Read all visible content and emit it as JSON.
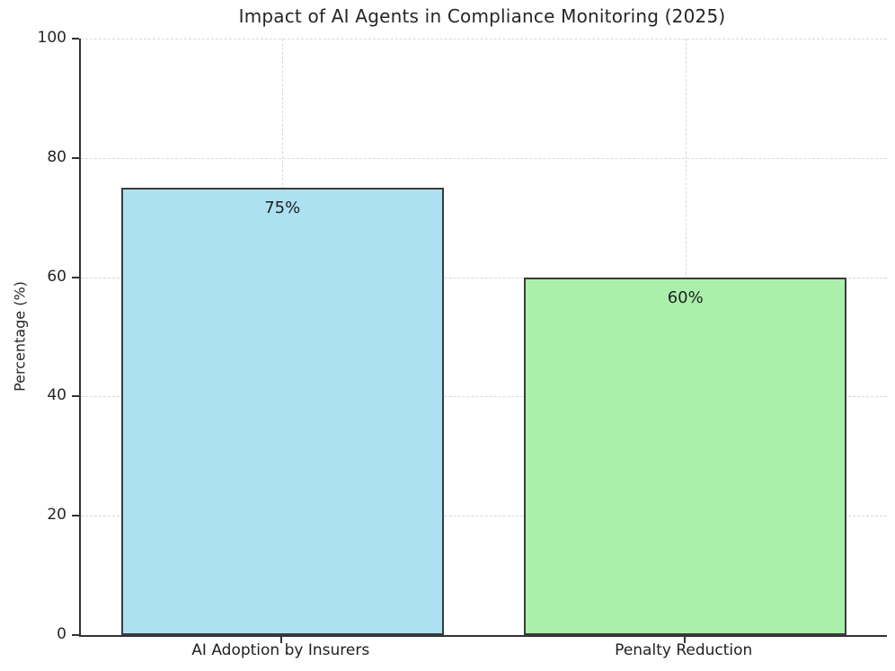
{
  "chart_data": {
    "type": "bar",
    "title": "Impact of AI Agents in Compliance Monitoring (2025)",
    "categories": [
      "AI Adoption by Insurers",
      "Penalty Reduction"
    ],
    "values": [
      75,
      60
    ],
    "bar_labels": [
      "75%",
      "60%"
    ],
    "bar_colors": [
      "#ade1f2",
      "#aaf0aa"
    ],
    "bar_edge_color": "#3b3b3b",
    "xlabel": "",
    "ylabel": "Percentage (%)",
    "ylim": [
      0,
      100
    ],
    "yticks": [
      0,
      20,
      40,
      60,
      80,
      100
    ],
    "grid": "dashed gridlines on both axes",
    "legend": "none",
    "spines": "left and bottom only",
    "value_label_position": "inside bar, top center",
    "text_color": "#262626",
    "grid_color": "#d8d8d8",
    "background_color": "#ffffff"
  }
}
